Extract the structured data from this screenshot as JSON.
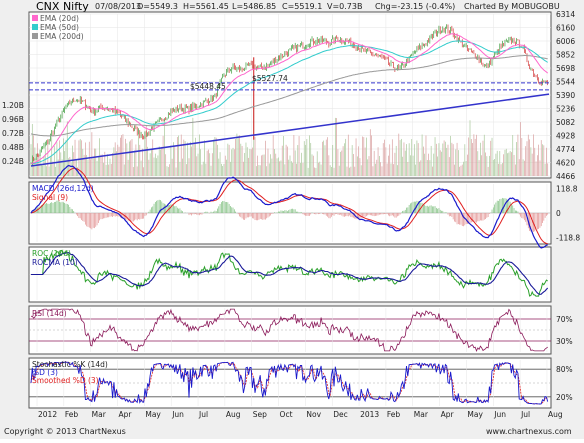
{
  "header": {
    "title": "CNX Nifty",
    "date": "07/08/2013",
    "open": "O=5549.3",
    "high": "H=5561.45",
    "low": "L=5486.85",
    "close": "C=5519.1",
    "volume": "V=0.73B",
    "change": "Chg=-23.15 (-0.4%)",
    "charted_by": "Charted By MOBUGOBU"
  },
  "footer": {
    "copyright": "Copyright © 2013 ChartNexus",
    "url": "www.chartnexus.com"
  },
  "colors": {
    "up": "#1a8a1a",
    "down": "#cc1a1a",
    "ema20": "#ff66cc",
    "ema50": "#33cccc",
    "ema200": "#999999",
    "trendline": "#3333cc",
    "macd": "#1a1acc",
    "signal": "#e02020",
    "roc": "#2aa02a",
    "rocma": "#1a1a99",
    "rsi": "#8b1a5a",
    "stoch_k": "#1a1acc",
    "stoch_d": "#e02020"
  },
  "chart_data": [
    {
      "type": "line",
      "panel": "price",
      "legend": [
        "EMA (20d)",
        "EMA (50d)",
        "EMA (200d)"
      ],
      "y_ticks": [
        "6314",
        "6160",
        "6006",
        "5852",
        "5698",
        "5544",
        "5390",
        "5236",
        "5082",
        "4928",
        "4774",
        "4620",
        "4466"
      ],
      "ylim": [
        4466,
        6314
      ],
      "volume_ticks": [
        "1.20B",
        "0.96B",
        "0.72B",
        "0.48B",
        "0.24B"
      ],
      "annotations": [
        "5527.74",
        "5448.45"
      ],
      "months": [
        "2012",
        "Feb",
        "Mar",
        "Apr",
        "May",
        "Jun",
        "Jul",
        "Aug",
        "Sep",
        "Oct",
        "Nov",
        "Dec",
        "2013",
        "Feb",
        "Mar",
        "Apr",
        "May",
        "Jun",
        "Jul",
        "Aug"
      ],
      "close_waypoints": [
        [
          0,
          4640
        ],
        [
          1,
          4730
        ],
        [
          2,
          4880
        ],
        [
          3,
          5080
        ],
        [
          4,
          5250
        ],
        [
          5,
          5350
        ],
        [
          6,
          5300
        ],
        [
          7,
          5200
        ],
        [
          8,
          5250
        ],
        [
          9,
          5230
        ],
        [
          10,
          5180
        ],
        [
          11,
          5080
        ],
        [
          12,
          4980
        ],
        [
          13,
          4920
        ],
        [
          14,
          5030
        ],
        [
          15,
          5120
        ],
        [
          16,
          5200
        ],
        [
          17,
          5240
        ],
        [
          18,
          5230
        ],
        [
          19,
          5270
        ],
        [
          20,
          5320
        ],
        [
          21,
          5370
        ],
        [
          22,
          5620
        ],
        [
          23,
          5700
        ],
        [
          24,
          5680
        ],
        [
          25,
          5730
        ],
        [
          26,
          5700
        ],
        [
          27,
          5720
        ],
        [
          28,
          5800
        ],
        [
          29,
          5860
        ],
        [
          30,
          5920
        ],
        [
          31,
          5950
        ],
        [
          32,
          6000
        ],
        [
          33,
          6020
        ],
        [
          34,
          5990
        ],
        [
          35,
          6040
        ],
        [
          36,
          6000
        ],
        [
          37,
          5960
        ],
        [
          38,
          5890
        ],
        [
          39,
          5860
        ],
        [
          40,
          5820
        ],
        [
          41,
          5740
        ],
        [
          42,
          5680
        ],
        [
          43,
          5780
        ],
        [
          44,
          5900
        ],
        [
          45,
          5980
        ],
        [
          46,
          6080
        ],
        [
          47,
          6160
        ],
        [
          48,
          6120
        ],
        [
          49,
          5990
        ],
        [
          50,
          5900
        ],
        [
          51,
          5820
        ],
        [
          52,
          5700
        ],
        [
          53,
          5850
        ],
        [
          54,
          5980
        ],
        [
          55,
          6020
        ],
        [
          56,
          5960
        ],
        [
          57,
          5700
        ],
        [
          58,
          5560
        ],
        [
          59,
          5519
        ]
      ]
    },
    {
      "type": "line",
      "panel": "macd",
      "legend": [
        "MACD (26d,12d)",
        "Signal (9)"
      ],
      "y_ticks": [
        "118.8",
        "0",
        "-118.8"
      ],
      "ylim": [
        -140,
        140
      ]
    },
    {
      "type": "line",
      "panel": "roc",
      "legend": [
        "ROC (10d)",
        "ROCMA (10)"
      ],
      "y_ticks": [],
      "ylim": [
        -10,
        10
      ]
    },
    {
      "type": "line",
      "panel": "rsi",
      "legend": [
        "RSI (14d)"
      ],
      "y_ticks": [
        "70%",
        "30%"
      ],
      "ylim": [
        10,
        90
      ]
    },
    {
      "type": "line",
      "panel": "stochastic",
      "legend": [
        "Stochastic %K (14d)",
        "%D (3)",
        "Smoothed %D (3)"
      ],
      "y_ticks": [
        "80%",
        "20%"
      ],
      "ylim": [
        0,
        100
      ]
    }
  ]
}
